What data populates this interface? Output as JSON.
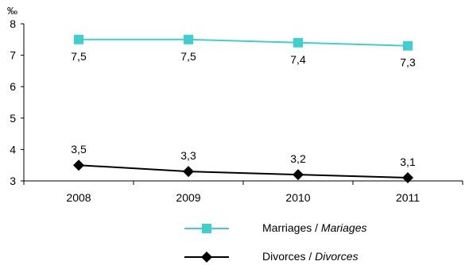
{
  "chart_data": {
    "type": "line",
    "unit_label": "‰",
    "categories": [
      "2008",
      "2009",
      "2010",
      "2011"
    ],
    "ylim": [
      3,
      8
    ],
    "yticks": [
      "3",
      "4",
      "5",
      "6",
      "7",
      "8"
    ],
    "series": [
      {
        "name": "Marriages / Mariages",
        "name_main": "Marriages / ",
        "name_italic": "Mariages",
        "values": [
          7.5,
          7.5,
          7.4,
          7.3
        ],
        "labels": [
          "7,5",
          "7,5",
          "7,4",
          "7,3"
        ],
        "color": "#3fcfcf",
        "marker": "square",
        "label_position": "below"
      },
      {
        "name": "Divorces / Divorces",
        "name_main": "Divorces / ",
        "name_italic": "Divorces",
        "values": [
          3.5,
          3.3,
          3.2,
          3.1
        ],
        "labels": [
          "3,5",
          "3,3",
          "3,2",
          "3,1"
        ],
        "color": "#000000",
        "marker": "diamond",
        "label_position": "above"
      }
    ],
    "grid": false,
    "legend_position": "bottom-center"
  }
}
